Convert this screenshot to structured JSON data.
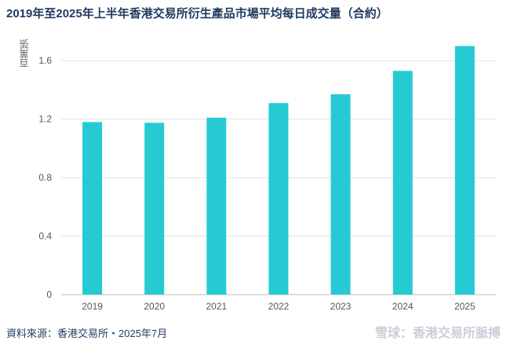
{
  "title": "2019年至2025年上半年香港交易所衍生產品市場平均每日成交量（合約）",
  "source": "資料來源：香港交易所・2025年7月",
  "watermark": "雪球：香港交易所脈搏",
  "colors": {
    "bar": "#26cad3",
    "title": "#1f3a5f",
    "grid": "#e3e3e3",
    "axis": "#bbbbbb"
  },
  "chart_data": {
    "type": "bar",
    "title": "2019年至2025年上半年香港交易所衍生產品市場平均每日成交量（合約）",
    "ylabel": "百萬張",
    "xlabel": "",
    "categories": [
      "2019",
      "2020",
      "2021",
      "2022",
      "2023",
      "2024",
      "2025"
    ],
    "values": [
      1.18,
      1.175,
      1.21,
      1.31,
      1.37,
      1.53,
      1.7
    ],
    "ylim": [
      0,
      1.8
    ],
    "yticks": [
      0,
      0.4,
      0.8,
      1.2,
      1.6
    ],
    "ytick_labels": [
      "0",
      "0.4",
      "0.8",
      "1.2",
      "1.6"
    ],
    "grid": true
  }
}
